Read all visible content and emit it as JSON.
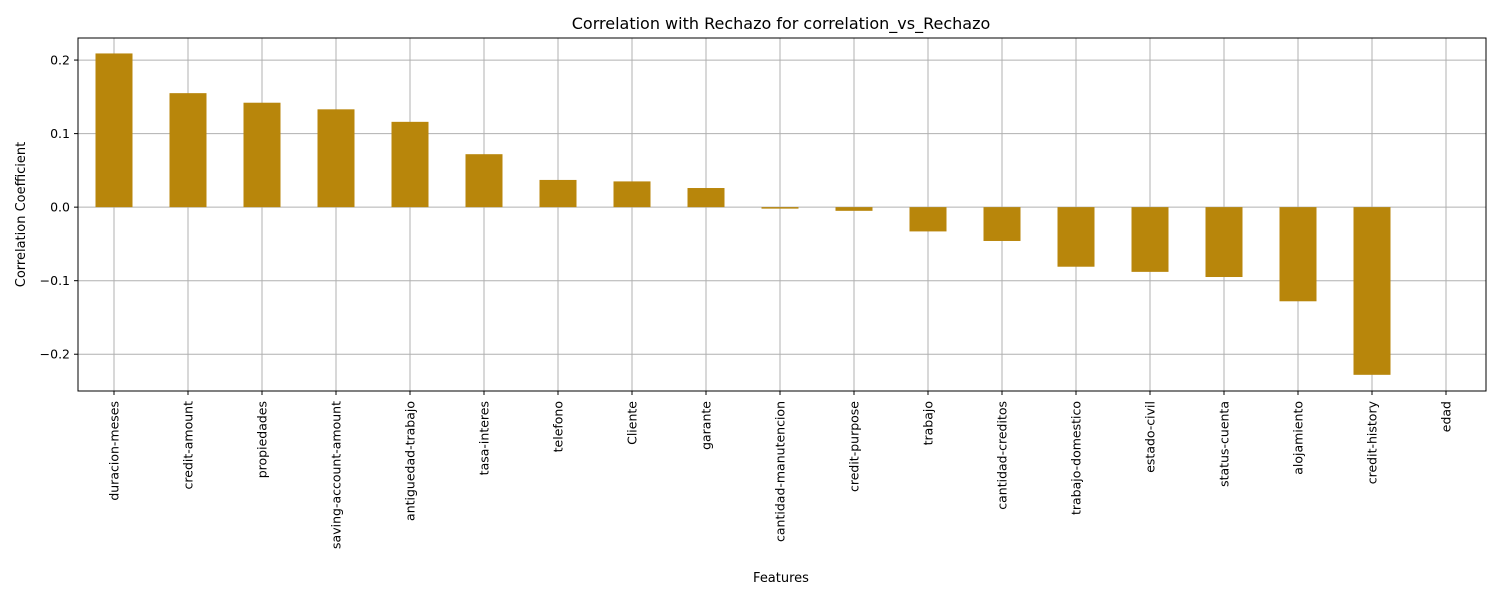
{
  "chart_data": {
    "type": "bar",
    "title": "Correlation with Rechazo for correlation_vs_Rechazo",
    "xlabel": "Features",
    "ylabel": "Correlation Coefficient",
    "categories": [
      "duracion-meses",
      "credit-amount",
      "propiedades",
      "saving-account-amount",
      "antiguedad-trabajo",
      "tasa-interes",
      "telefono",
      "Cliente",
      "garante",
      "cantidad-manutencion",
      "credit-purpose",
      "trabajo",
      "cantidad-creditos",
      "trabajo-domestico",
      "estado-civil",
      "status-cuenta",
      "alojamiento",
      "credit-history",
      "edad"
    ],
    "values": [
      0.209,
      0.155,
      0.142,
      0.133,
      0.116,
      0.072,
      0.037,
      0.035,
      0.026,
      -0.002,
      -0.005,
      -0.033,
      -0.046,
      -0.081,
      -0.088,
      -0.095,
      -0.128,
      -0.228,
      0.0
    ],
    "ylim": [
      -0.25,
      0.23
    ],
    "yticks": [
      -0.2,
      -0.1,
      0.0,
      0.1,
      0.2
    ],
    "ytick_labels": [
      "−0.2",
      "−0.1",
      "0.0",
      "0.1",
      "0.2"
    ],
    "grid": true,
    "bar_color": "#b8860b"
  }
}
